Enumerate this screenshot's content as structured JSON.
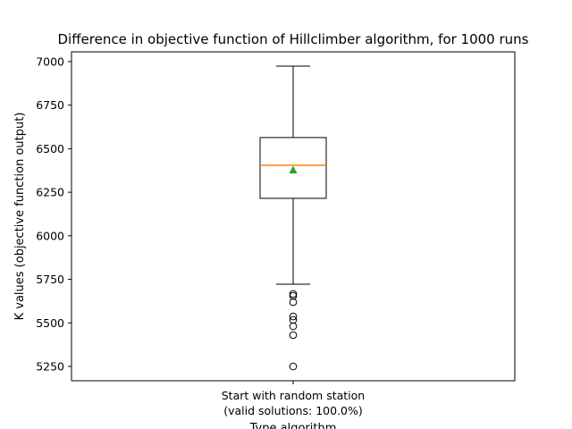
{
  "chart_data": {
    "type": "box",
    "title": "Difference in objective function of Hillclimber algorithm, for 1000 runs",
    "xlabel": "Type algorithm",
    "ylabel": "K values (objective function output)",
    "categories": [
      "Start with random station\n(valid solutions: 100.0%)"
    ],
    "boxes": [
      {
        "whislo": 5722,
        "q1": 6215,
        "med": 6405,
        "q3": 6564,
        "whishi": 6974,
        "mean": 6379,
        "fliers": [
          5666,
          5655,
          5619,
          5537,
          5517,
          5481,
          5430,
          5250
        ]
      }
    ],
    "box_color": "#000000",
    "median_color": "#ff7f0e",
    "mean_color": "#2ca02c",
    "ylim": [
      5168,
      7056
    ],
    "yticks": [
      5250,
      5500,
      5750,
      6000,
      6250,
      6500,
      6750,
      7000
    ]
  }
}
